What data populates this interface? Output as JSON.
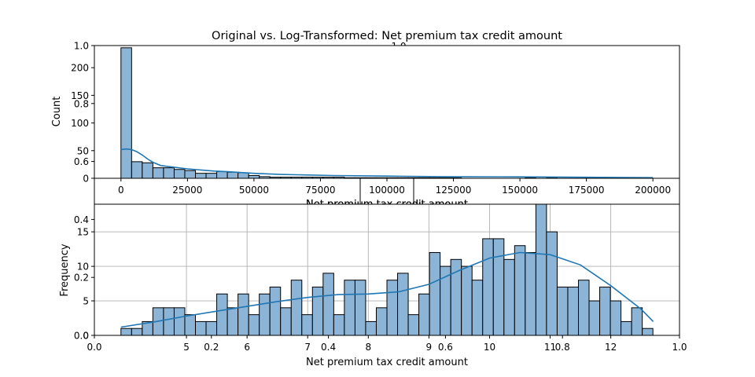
{
  "figure_title": "Original vs. Log-Transformed: Net premium tax credit amount",
  "colors": {
    "bar_fill": "#8cb4d6",
    "bar_edge": "#000000",
    "kde": "#1f77b4",
    "grid": "#b0b0b0"
  },
  "chart_data": [
    {
      "type": "bar",
      "panel": "original",
      "xlabel": "Net premium tax credit amount",
      "ylabel": "Count",
      "xlim": [
        -10000,
        210000
      ],
      "ylim": [
        0,
        240
      ],
      "xticks": [
        0,
        25000,
        50000,
        75000,
        100000,
        125000,
        150000,
        175000,
        200000
      ],
      "yticks": [
        0,
        50,
        100,
        150,
        200
      ],
      "grid": false,
      "bin_width": 4000,
      "bin_start": 0,
      "counts": [
        236,
        30,
        28,
        19,
        19,
        16,
        14,
        9,
        9,
        12,
        11,
        10,
        5,
        3,
        2,
        2,
        2,
        2,
        2,
        2,
        2,
        1,
        1,
        1,
        1,
        1,
        1,
        1,
        1,
        1,
        1,
        1,
        0,
        0,
        0,
        0,
        0,
        0,
        1,
        0,
        1,
        0,
        0,
        0,
        0,
        0,
        0,
        0,
        0,
        0
      ],
      "kde": {
        "x": [
          0,
          2000,
          4000,
          6000,
          8000,
          10000,
          12000,
          15000,
          20000,
          25000,
          30000,
          35000,
          40000,
          50000,
          60000,
          70000,
          80000,
          100000,
          120000,
          150000,
          175000,
          200000
        ],
        "y": [
          52,
          53,
          52,
          48,
          42,
          35,
          29,
          23,
          20,
          17,
          15,
          13,
          12,
          9,
          7,
          6,
          5,
          4,
          3,
          2.5,
          1.8,
          1.2
        ]
      }
    },
    {
      "type": "bar",
      "panel": "log",
      "xlabel": "Net premium tax credit amount",
      "ylabel": "Frequency",
      "ylim": [
        0,
        19
      ],
      "yticks": [
        0,
        5,
        10,
        15
      ],
      "xticks": [
        5,
        6,
        7,
        8,
        9,
        10,
        11,
        12
      ],
      "grid": true,
      "bin_start": 3.92,
      "bin_width": 0.1755,
      "counts": [
        1,
        1,
        2,
        4,
        4,
        4,
        3,
        2,
        2,
        6,
        4,
        6,
        3,
        6,
        7,
        4,
        8,
        3,
        7,
        9,
        3,
        8,
        8,
        2,
        4,
        8,
        9,
        3,
        6,
        12,
        10,
        11,
        10,
        8,
        14,
        14,
        11,
        13,
        12,
        19,
        15,
        7,
        7,
        8,
        5,
        7,
        5,
        2,
        4,
        1
      ],
      "kde": {
        "x": [
          3.92,
          4.5,
          5.0,
          5.5,
          6.0,
          6.5,
          7.0,
          7.5,
          8.0,
          8.5,
          9.0,
          9.5,
          10.0,
          10.5,
          11.0,
          11.5,
          12.0,
          12.5,
          12.7
        ],
        "y": [
          1.2,
          2.0,
          2.8,
          3.5,
          4.2,
          4.9,
          5.5,
          5.9,
          6.0,
          6.3,
          7.4,
          9.4,
          11.2,
          12.0,
          11.7,
          10.2,
          7.2,
          3.8,
          2.0
        ]
      }
    }
  ],
  "overlay_axes": {
    "xlabel": "Net premium tax credit amount",
    "xticks": [
      "0.0",
      "0.2",
      "0.4",
      "0.6",
      "0.8",
      "1.0"
    ],
    "yticks": [
      "0.0",
      "0.2",
      "0.4",
      "0.6",
      "0.8",
      "1.0"
    ]
  }
}
